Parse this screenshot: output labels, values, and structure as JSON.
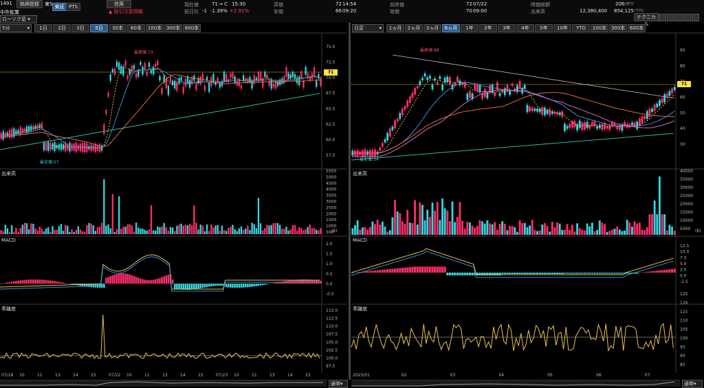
{
  "header": {
    "code": "1491",
    "company": "中外鉱業",
    "btn_register": "銘柄登録",
    "market": "東S",
    "tab_tse": "東証",
    "tab_pts": "PTS",
    "credit": "信用",
    "warning": "取引注意情報",
    "current_label": "現在値",
    "current_value": "71",
    "current_arrow": "→ C",
    "current_time": "15:30",
    "change_label": "前日比",
    "change_value": "-1",
    "change_pct": "-1.39%",
    "change_pct2": "+2.91%",
    "high_label": "高値",
    "high_value": "72",
    "high_time": "14:54",
    "low_label": "安値",
    "low_value": "66",
    "low_time": "09:20",
    "prev_close_label": "前終値",
    "prev_close_value": "72",
    "prev_close_date": "07/22",
    "open_label": "始値",
    "open_value": "70",
    "open_time": "09:00",
    "mcap_label": "時価総額",
    "mcap_value": "206",
    "mcap_unit": "(億円)",
    "volume_label": "出来高",
    "volume_value": "12,380,400",
    "turnover_value": "854,125",
    "turnover_unit": "(千円)",
    "chart_type": "ローソク足",
    "technical_btn": "テクニカル"
  },
  "left_toolbar": {
    "interval": "5分",
    "ranges": [
      "1日",
      "2日",
      "3日",
      "5日",
      "30本",
      "60本",
      "100本",
      "300本",
      "600本"
    ],
    "active": "5日"
  },
  "right_toolbar": {
    "interval": "日足",
    "ranges": [
      "1ヵ月",
      "2ヵ月",
      "3ヵ月",
      "6ヵ月",
      "1年",
      "2年",
      "3年",
      "4年",
      "5年",
      "10年",
      "YTD",
      "100本",
      "300本",
      "600本"
    ],
    "active": "6ヵ月"
  },
  "panels": {
    "volume": "出来高",
    "macd": "MACD",
    "kairi": "乖離度",
    "vol_unit": "(K)"
  },
  "left_chart": {
    "max_label": "最高値:74",
    "min_label": "最安値:57",
    "price_tag": "71",
    "price_ticks": [
      "75.0",
      "72.5",
      "70.0",
      "67.5",
      "65.0",
      "62.5",
      "60.0",
      "57.5"
    ],
    "vol_ticks": [
      "5500",
      "5000",
      "4500",
      "4000",
      "3500",
      "3000",
      "2500",
      "2000",
      "1500",
      "1000",
      "500"
    ],
    "macd_ticks": [
      "2.0",
      "1.5",
      "1.0",
      "0.5",
      "0.0",
      "-0.5"
    ],
    "kairi_ticks": [
      "115.0",
      "112.5",
      "110.0",
      "107.5",
      "105.0",
      "102.5",
      "100.0",
      "97.5"
    ],
    "x_labels": [
      "07/18",
      "10",
      "11",
      "13",
      "14",
      "15",
      "07/22",
      "10",
      "11",
      "13",
      "14",
      "15",
      "07/23",
      "10",
      "11",
      "13",
      "14",
      "15"
    ],
    "scroll_select": "通常"
  },
  "right_chart": {
    "max_label": "最高値:88",
    "min_label": "最安値:34",
    "price_tag": "71",
    "price_ticks": [
      "90",
      "80",
      "70",
      "60",
      "50",
      "40",
      "30"
    ],
    "vol_ticks": [
      "40000",
      "35000",
      "30000",
      "25000",
      "20000",
      "15000",
      "10000",
      "5000"
    ],
    "macd_ticks": [
      "12.5",
      "10.0",
      "7.5",
      "5.0",
      "2.5",
      "0.0",
      "-2.5"
    ],
    "kairi_ticks": [
      "125",
      "120",
      "115",
      "110",
      "105",
      "100",
      "95",
      "90",
      "85"
    ],
    "x_labels": [
      "2025/01",
      "02",
      "03",
      "04",
      "05",
      "06",
      "07"
    ],
    "scroll_select": "通常"
  },
  "colors": {
    "up": "#ff2d6a",
    "down": "#35d6e0",
    "ma_short": "#e8c44a",
    "ma_mid": "#3a8fd8",
    "ma_long": "#e86a3a",
    "ma_xlong": "#2fb89a"
  }
}
